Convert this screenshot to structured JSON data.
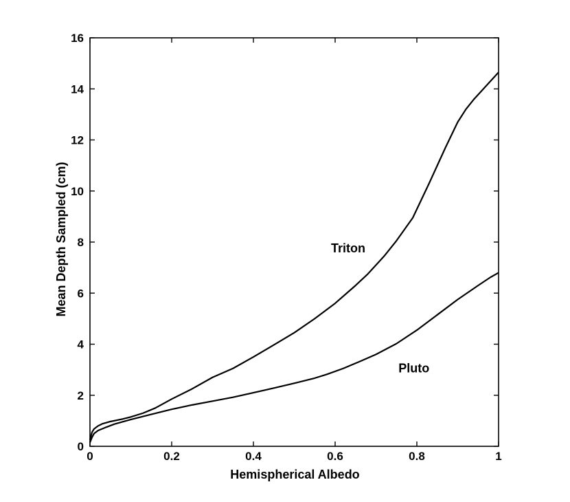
{
  "chart_data": {
    "type": "line",
    "xlabel": "Hemispherical Albedo",
    "ylabel": "Mean Depth Sampled (cm)",
    "xlim": [
      0,
      1
    ],
    "ylim": [
      0,
      16
    ],
    "xticks": [
      0,
      0.2,
      0.4,
      0.6,
      0.8,
      1
    ],
    "xtick_labels": [
      "0",
      "0.2",
      "0.4",
      "0.6",
      "0.8",
      "1"
    ],
    "yticks": [
      0,
      2,
      4,
      6,
      8,
      10,
      12,
      14,
      16
    ],
    "ytick_labels": [
      "0",
      "2",
      "4",
      "6",
      "8",
      "10",
      "12",
      "14",
      "16"
    ],
    "grid": false,
    "series": [
      {
        "name": "Triton",
        "color": "#000000",
        "x": [
          0,
          0.005,
          0.01,
          0.02,
          0.03,
          0.05,
          0.08,
          0.1,
          0.13,
          0.16,
          0.2,
          0.25,
          0.3,
          0.35,
          0.4,
          0.45,
          0.5,
          0.55,
          0.6,
          0.65,
          0.68,
          0.72,
          0.75,
          0.79,
          0.83,
          0.87,
          0.9,
          0.92,
          0.94,
          0.96,
          0.98,
          1.0
        ],
        "y": [
          0.25,
          0.55,
          0.68,
          0.8,
          0.88,
          0.97,
          1.07,
          1.15,
          1.3,
          1.5,
          1.85,
          2.25,
          2.7,
          3.05,
          3.5,
          3.97,
          4.45,
          5.0,
          5.6,
          6.3,
          6.75,
          7.45,
          8.05,
          8.95,
          10.3,
          11.7,
          12.7,
          13.2,
          13.6,
          13.95,
          14.3,
          14.65
        ]
      },
      {
        "name": "Pluto",
        "color": "#000000",
        "x": [
          0,
          0.005,
          0.01,
          0.02,
          0.04,
          0.06,
          0.1,
          0.15,
          0.2,
          0.25,
          0.3,
          0.35,
          0.4,
          0.45,
          0.5,
          0.55,
          0.58,
          0.62,
          0.66,
          0.7,
          0.75,
          0.8,
          0.85,
          0.9,
          0.95,
          0.98,
          1.0
        ],
        "y": [
          0.15,
          0.35,
          0.5,
          0.62,
          0.75,
          0.87,
          1.05,
          1.25,
          1.45,
          1.62,
          1.77,
          1.92,
          2.1,
          2.28,
          2.47,
          2.67,
          2.82,
          3.05,
          3.32,
          3.6,
          4.02,
          4.55,
          5.15,
          5.75,
          6.3,
          6.62,
          6.8
        ]
      }
    ],
    "annotations": [
      {
        "text": "Triton",
        "x": 0.59,
        "y": 7.6
      },
      {
        "text": "Pluto",
        "x": 0.755,
        "y": 2.9
      }
    ]
  }
}
